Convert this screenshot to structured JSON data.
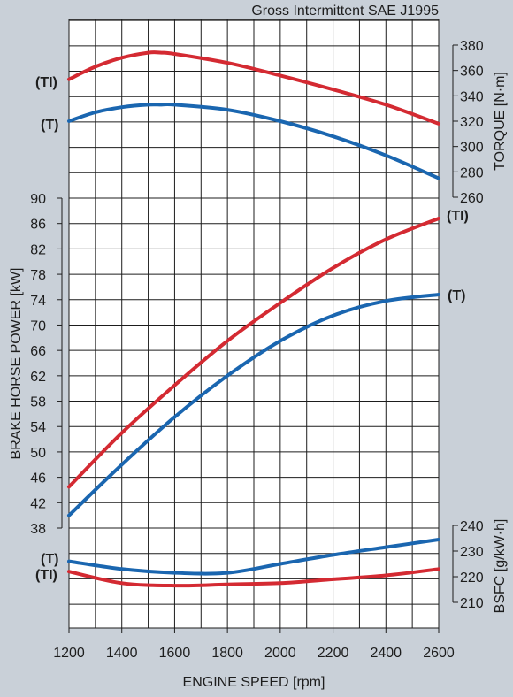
{
  "chart_data": {
    "type": "line",
    "title": "Gross Intermittent SAE J1995",
    "xlabel": "ENGINE SPEED  [rpm]",
    "x_ticks": [
      1200,
      1400,
      1600,
      1800,
      2000,
      2200,
      2400,
      2600
    ],
    "xlim": [
      1200,
      2600
    ],
    "grid": true,
    "panels": {
      "torque": {
        "ylabel": "TORQUE [N·m]",
        "axis_side": "right",
        "ylim": [
          260,
          380
        ],
        "ticks": [
          260,
          280,
          300,
          320,
          340,
          360,
          380
        ],
        "series": [
          {
            "name": "(TI)",
            "color": "#d42a32",
            "x": [
              1200,
              1300,
              1400,
              1500,
              1550,
              1600,
              1800,
              2000,
              2200,
              2400,
              2600
            ],
            "y": [
              353,
              363,
              370,
              374,
              374,
              373,
              366,
              356,
              345,
              333,
              318
            ]
          },
          {
            "name": "(T)",
            "color": "#1a66b0",
            "x": [
              1200,
              1300,
              1400,
              1500,
              1550,
              1600,
              1800,
              2000,
              2200,
              2400,
              2600
            ],
            "y": [
              320,
              327,
              331,
              333,
              333,
              333,
              329,
              320,
              308,
              293,
              275
            ]
          }
        ]
      },
      "power": {
        "ylabel": "BRAKE HORSE POWER  [kW]",
        "axis_side": "left",
        "ylim": [
          38,
          90
        ],
        "ticks": [
          38,
          42,
          46,
          50,
          54,
          58,
          62,
          66,
          70,
          74,
          78,
          82,
          86,
          90
        ],
        "series": [
          {
            "name": "(TI)",
            "color": "#d42a32",
            "x": [
              1200,
              1400,
              1600,
              1800,
              2000,
              2200,
              2400,
              2600
            ],
            "y": [
              44.5,
              53,
              60.5,
              67.5,
              73.5,
              79,
              83.5,
              86.8
            ]
          },
          {
            "name": "(T)",
            "color": "#1a66b0",
            "x": [
              1200,
              1400,
              1600,
              1800,
              2000,
              2200,
              2400,
              2600
            ],
            "y": [
              40,
              48,
              55.5,
              62,
              67.5,
              71.5,
              73.8,
              74.8
            ]
          }
        ]
      },
      "bsfc": {
        "ylabel": "BSFC [g/kW·h]",
        "axis_side": "right",
        "ylim": [
          210,
          240
        ],
        "ticks": [
          210,
          220,
          230,
          240
        ],
        "series": [
          {
            "name": "(T)",
            "color": "#1a66b0",
            "x": [
              1200,
              1400,
              1600,
              1800,
              2000,
              2200,
              2400,
              2600
            ],
            "y": [
              226,
              223,
              221.5,
              221.5,
              225,
              228.5,
              231.5,
              234.5
            ]
          },
          {
            "name": "(TI)",
            "color": "#d42a32",
            "x": [
              1200,
              1400,
              1600,
              1800,
              2000,
              2200,
              2400,
              2600
            ],
            "y": [
              222,
              217.5,
              216.5,
              217,
              217.5,
              219,
              220.5,
              223
            ]
          }
        ]
      }
    }
  }
}
